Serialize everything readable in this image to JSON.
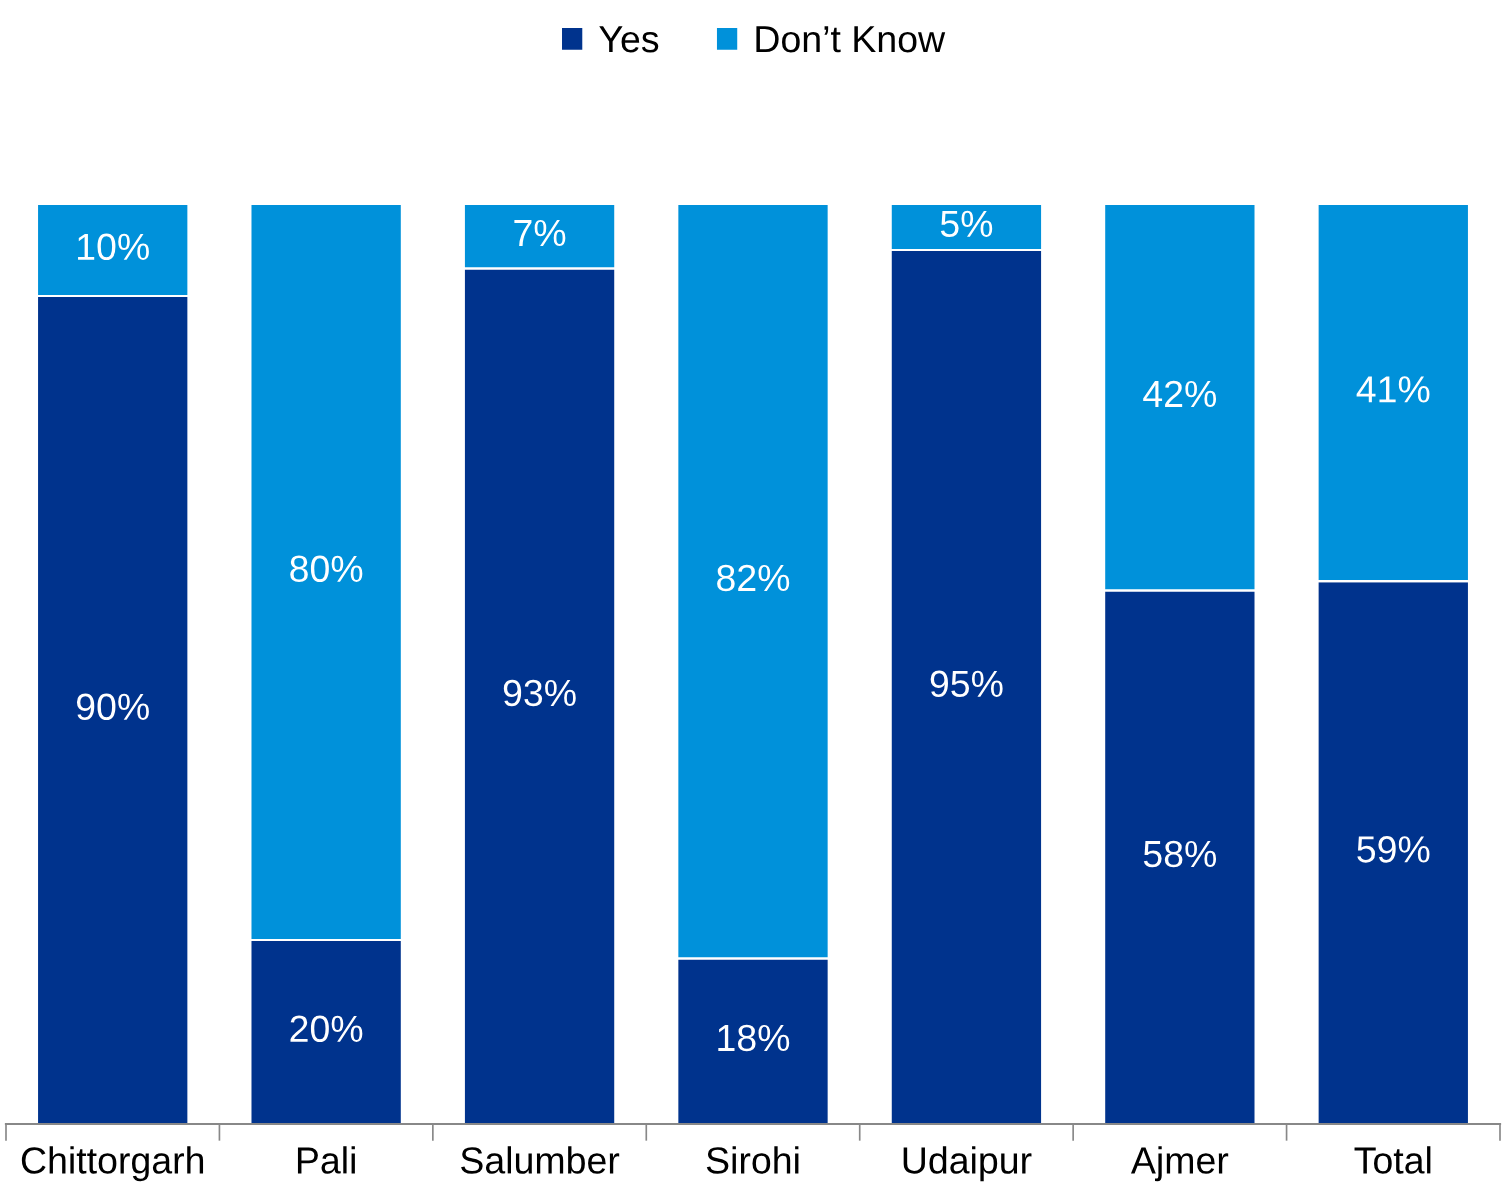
{
  "chart_data": {
    "type": "bar",
    "stacked": true,
    "legend": "top",
    "categories": [
      "Chittorgarh",
      "Pali",
      "Salumber",
      "Sirohi",
      "Udaipur",
      "Ajmer",
      "Total"
    ],
    "series": [
      {
        "name": "Yes",
        "color": "#00338d",
        "values": [
          90,
          20,
          93,
          18,
          95,
          58,
          59
        ],
        "value_labels": [
          "90%",
          "20%",
          "93%",
          "18%",
          "95%",
          "58%",
          "59%"
        ]
      },
      {
        "name": "Don’t Know",
        "color": "#0091da",
        "values": [
          10,
          80,
          7,
          82,
          5,
          42,
          41
        ],
        "value_labels": [
          "10%",
          "80%",
          "7%",
          "82%",
          "5%",
          "42%",
          "41%"
        ]
      }
    ]
  }
}
